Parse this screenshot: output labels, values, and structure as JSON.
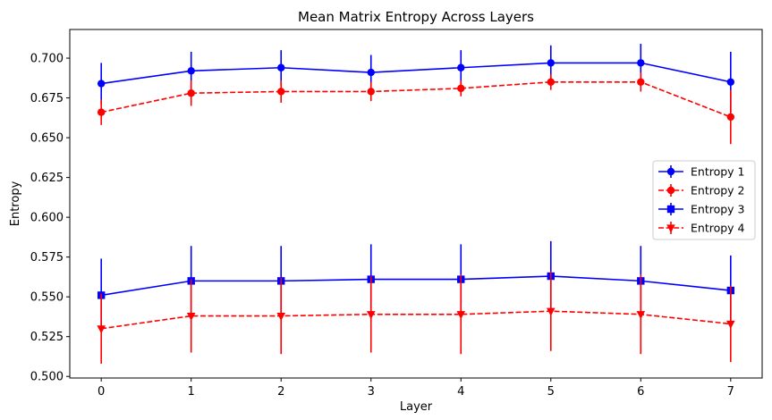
{
  "chart_data": {
    "type": "line",
    "title": "Mean Matrix Entropy Across Layers",
    "xlabel": "Layer",
    "ylabel": "Entropy",
    "x": [
      0,
      1,
      2,
      3,
      4,
      5,
      6,
      7
    ],
    "xlim": [
      -0.35,
      7.35
    ],
    "ylim": [
      0.499,
      0.718
    ],
    "yticks": [
      0.5,
      0.525,
      0.55,
      0.575,
      0.6,
      0.625,
      0.65,
      0.675,
      0.7
    ],
    "ytick_labels": [
      "0.500",
      "0.525",
      "0.550",
      "0.575",
      "0.600",
      "0.625",
      "0.650",
      "0.675",
      "0.700"
    ],
    "xticks": [
      0,
      1,
      2,
      3,
      4,
      5,
      6,
      7
    ],
    "xtick_labels": [
      "0",
      "1",
      "2",
      "3",
      "4",
      "5",
      "6",
      "7"
    ],
    "grid": false,
    "legend_position": "center-right",
    "series": [
      {
        "name": "Entropy 1",
        "color": "#0000ff",
        "linestyle": "solid",
        "marker": "circle",
        "values": [
          0.684,
          0.692,
          0.694,
          0.691,
          0.694,
          0.697,
          0.697,
          0.685
        ],
        "errors": [
          0.013,
          0.012,
          0.011,
          0.011,
          0.011,
          0.011,
          0.012,
          0.019
        ]
      },
      {
        "name": "Entropy 2",
        "color": "#ff0000",
        "linestyle": "dashed",
        "marker": "circle",
        "values": [
          0.666,
          0.678,
          0.679,
          0.679,
          0.681,
          0.685,
          0.685,
          0.663
        ],
        "errors": [
          0.008,
          0.008,
          0.007,
          0.006,
          0.005,
          0.005,
          0.006,
          0.017
        ]
      },
      {
        "name": "Entropy 3",
        "color": "#0000ff",
        "linestyle": "solid",
        "marker": "square",
        "values": [
          0.551,
          0.56,
          0.56,
          0.561,
          0.561,
          0.563,
          0.56,
          0.554
        ],
        "errors": [
          0.023,
          0.022,
          0.022,
          0.022,
          0.022,
          0.022,
          0.022,
          0.022
        ]
      },
      {
        "name": "Entropy 4",
        "color": "#ff0000",
        "linestyle": "dashed",
        "marker": "triangle-down",
        "values": [
          0.53,
          0.538,
          0.538,
          0.539,
          0.539,
          0.541,
          0.539,
          0.533
        ],
        "errors": [
          0.022,
          0.023,
          0.024,
          0.024,
          0.025,
          0.025,
          0.025,
          0.024
        ]
      }
    ]
  }
}
